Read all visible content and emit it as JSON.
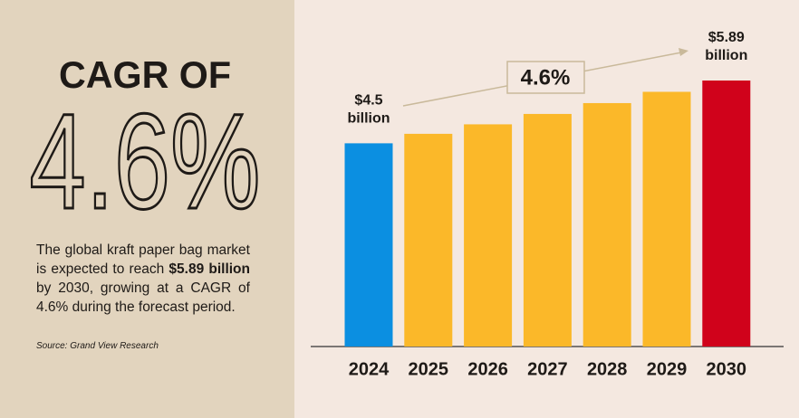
{
  "chart_data": {
    "type": "bar",
    "headline": "CAGR OF",
    "big_number": "4.6%",
    "description": [
      "The global kraft paper bag market is expected to reach ",
      "$5.89 billion",
      " by 2030, growing at a CAGR of 4.6% during the forecast period."
    ],
    "source": "Source: Grand View Research",
    "annotation": "4.6%",
    "categories": [
      "2024",
      "2025",
      "2026",
      "2027",
      "2028",
      "2029",
      "2030"
    ],
    "values": [
      4.5,
      4.71,
      4.92,
      5.15,
      5.39,
      5.64,
      5.89
    ],
    "value_labels": [
      "$4.5 billion",
      null,
      null,
      null,
      null,
      null,
      "$5.89 billion"
    ],
    "colors": [
      "#0b8fe1",
      "#fbb829",
      "#fbb829",
      "#fbb829",
      "#fbb829",
      "#fbb829",
      "#d0021b"
    ]
  }
}
